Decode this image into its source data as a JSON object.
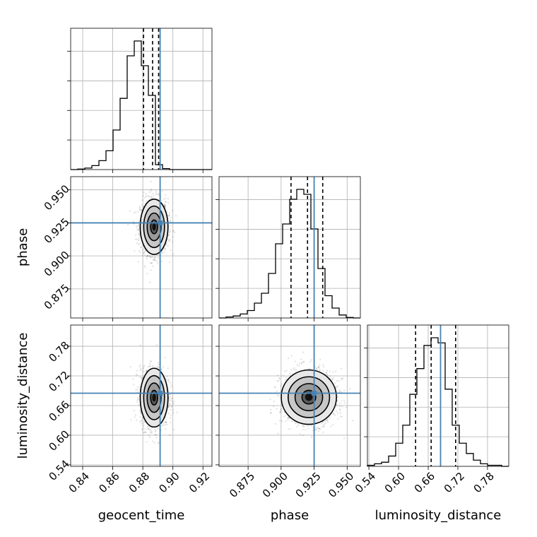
{
  "chart_data": {
    "type": "corner",
    "parameters": [
      {
        "key": "geocent_time",
        "label": "geocent_time",
        "range": [
          0.832,
          0.926
        ],
        "ticks": [
          "0.84",
          "0.86",
          "0.88",
          "0.90",
          "0.92"
        ],
        "truth": 0.8915,
        "quantiles": [
          0.8805,
          0.8865,
          0.8905
        ],
        "hist_edges_start": 0.832,
        "hist_bin_width": 0.0047,
        "hist_counts": [
          0,
          1,
          3,
          8,
          18,
          38,
          80,
          144,
          230,
          260,
          210,
          150,
          10,
          2,
          0,
          0,
          0,
          0,
          0,
          0
        ]
      },
      {
        "key": "phase",
        "label": "phase",
        "range": [
          0.853,
          0.96
        ],
        "ticks": [
          "0.875",
          "0.900",
          "0.925",
          "0.950"
        ],
        "truth": 0.925,
        "quantiles": [
          0.9075,
          0.92,
          0.9315
        ],
        "hist_edges_start": 0.853,
        "hist_bin_width": 0.00535,
        "hist_counts": [
          0,
          2,
          4,
          8,
          15,
          30,
          50,
          90,
          150,
          190,
          240,
          260,
          250,
          180,
          100,
          45,
          20,
          6,
          1,
          0
        ]
      },
      {
        "key": "luminosity_distance",
        "label": "luminosity_distance",
        "range": [
          0.537,
          0.823
        ],
        "ticks": [
          "0.54",
          "0.60",
          "0.66",
          "0.72",
          "0.78"
        ],
        "truth": 0.685,
        "quantiles": [
          0.6345,
          0.666,
          0.7155
        ],
        "hist_edges_start": 0.537,
        "hist_bin_width": 0.0143,
        "hist_counts": [
          2,
          5,
          8,
          20,
          45,
          80,
          140,
          190,
          235,
          250,
          240,
          150,
          80,
          45,
          25,
          12,
          5,
          2,
          2,
          0
        ]
      }
    ],
    "panels_2d": [
      {
        "x": "geocent_time",
        "y": "phase",
        "center": [
          0.8875,
          0.922
        ],
        "spread": [
          0.0042,
          0.0095
        ],
        "contour_scales": [
          0.55,
          1.1,
          1.65,
          2.2
        ]
      },
      {
        "x": "geocent_time",
        "y": "luminosity_distance",
        "center": [
          0.8875,
          0.676
        ],
        "spread": [
          0.0042,
          0.027
        ],
        "contour_scales": [
          0.55,
          1.1,
          1.65,
          2.2
        ]
      },
      {
        "x": "phase",
        "y": "luminosity_distance",
        "center": [
          0.921,
          0.677
        ],
        "spread": [
          0.0095,
          0.025
        ],
        "contour_scales": [
          0.55,
          1.1,
          1.65,
          2.2
        ]
      }
    ],
    "truth_color": "#4682b4",
    "grid": true
  }
}
